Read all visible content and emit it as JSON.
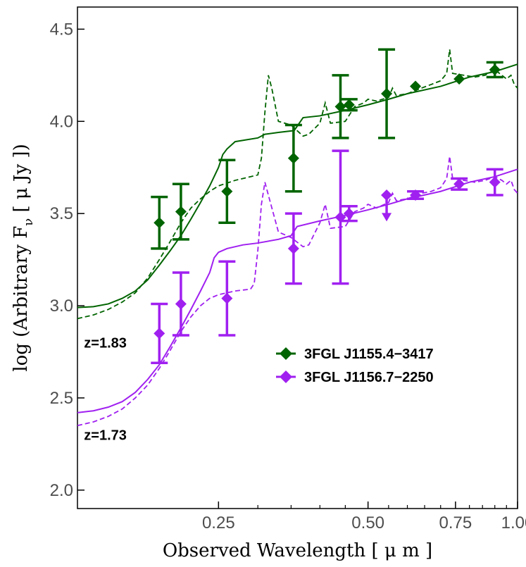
{
  "chart_data": {
    "type": "scatter",
    "xscale": "log",
    "xlim": [
      0.13,
      1.0
    ],
    "ylim": [
      1.9,
      4.62
    ],
    "xlabel": "Observed Wavelength [ μ m ]",
    "ylabel_main": "log (Arbitrary F",
    "ylabel_sub": "ν",
    "ylabel_tail": " [ μ Jy ])",
    "x_ticks": [
      {
        "value": 0.25,
        "label": "0.25"
      },
      {
        "value": 0.5,
        "label": "0.50"
      },
      {
        "value": 0.75,
        "label": "0.75"
      },
      {
        "value": 1.0,
        "label": "1.00"
      }
    ],
    "x_minor_ticks": [
      0.3,
      0.35,
      0.4,
      0.45,
      0.55,
      0.6,
      0.65,
      0.7,
      0.8,
      0.85,
      0.9,
      0.95
    ],
    "y_ticks": [
      {
        "value": 2.0,
        "label": "2.0"
      },
      {
        "value": 2.5,
        "label": "2.5"
      },
      {
        "value": 3.0,
        "label": "3.0"
      },
      {
        "value": 3.5,
        "label": "3.5"
      },
      {
        "value": 4.0,
        "label": "4.0"
      },
      {
        "value": 4.5,
        "label": "4.5"
      }
    ],
    "annotations": [
      {
        "text": "z=1.83",
        "x": 0.134,
        "y": 2.8
      },
      {
        "text": "z=1.73",
        "x": 0.134,
        "y": 2.3
      }
    ],
    "series": [
      {
        "name": "3FGL J1155.4−3417",
        "color": "#006400",
        "points": [
          {
            "x": 0.19,
            "y": 3.45,
            "err": 0.14
          },
          {
            "x": 0.21,
            "y": 3.51,
            "err": 0.15
          },
          {
            "x": 0.26,
            "y": 3.62,
            "err": 0.17
          },
          {
            "x": 0.354,
            "y": 3.8,
            "err": 0.18
          },
          {
            "x": 0.44,
            "y": 4.08,
            "err": 0.17
          },
          {
            "x": 0.458,
            "y": 4.09,
            "err": 0.03
          },
          {
            "x": 0.545,
            "y": 4.15,
            "err": 0.24
          },
          {
            "x": 0.623,
            "y": 4.19,
            "err": 0.01
          },
          {
            "x": 0.763,
            "y": 4.23,
            "err": 0.01
          },
          {
            "x": 0.9,
            "y": 4.28,
            "err": 0.04
          }
        ],
        "model_solid": [
          [
            0.13,
            2.99
          ],
          [
            0.14,
            2.995
          ],
          [
            0.15,
            3.01
          ],
          [
            0.16,
            3.04
          ],
          [
            0.17,
            3.08
          ],
          [
            0.18,
            3.14
          ],
          [
            0.19,
            3.22
          ],
          [
            0.2,
            3.3
          ],
          [
            0.21,
            3.38
          ],
          [
            0.22,
            3.47
          ],
          [
            0.23,
            3.56
          ],
          [
            0.24,
            3.65
          ],
          [
            0.25,
            3.75
          ],
          [
            0.255,
            3.82
          ],
          [
            0.26,
            3.85
          ],
          [
            0.27,
            3.89
          ],
          [
            0.3,
            3.91
          ],
          [
            0.31,
            3.93
          ],
          [
            0.33,
            3.94
          ],
          [
            0.355,
            3.95
          ],
          [
            0.37,
            4.02
          ],
          [
            0.4,
            4.03
          ],
          [
            0.45,
            4.06
          ],
          [
            0.5,
            4.09
          ],
          [
            0.55,
            4.12
          ],
          [
            0.6,
            4.15
          ],
          [
            0.7,
            4.19
          ],
          [
            0.8,
            4.24
          ],
          [
            0.9,
            4.27
          ],
          [
            1.0,
            4.31
          ]
        ],
        "model_dashed": [
          [
            0.13,
            2.93
          ],
          [
            0.14,
            2.95
          ],
          [
            0.15,
            2.98
          ],
          [
            0.16,
            3.02
          ],
          [
            0.17,
            3.07
          ],
          [
            0.18,
            3.15
          ],
          [
            0.19,
            3.25
          ],
          [
            0.2,
            3.35
          ],
          [
            0.21,
            3.45
          ],
          [
            0.22,
            3.53
          ],
          [
            0.23,
            3.58
          ],
          [
            0.24,
            3.62
          ],
          [
            0.25,
            3.65
          ],
          [
            0.27,
            3.68
          ],
          [
            0.29,
            3.7
          ],
          [
            0.3,
            3.71
          ],
          [
            0.305,
            3.8
          ],
          [
            0.31,
            4.05
          ],
          [
            0.315,
            4.25
          ],
          [
            0.32,
            4.18
          ],
          [
            0.33,
            4.0
          ],
          [
            0.35,
            3.98
          ],
          [
            0.37,
            3.92
          ],
          [
            0.38,
            3.93
          ],
          [
            0.4,
            3.99
          ],
          [
            0.41,
            4.1
          ],
          [
            0.42,
            3.99
          ],
          [
            0.45,
            4.0
          ],
          [
            0.47,
            4.08
          ],
          [
            0.49,
            4.1
          ],
          [
            0.5,
            4.12
          ],
          [
            0.52,
            4.11
          ],
          [
            0.55,
            4.13
          ],
          [
            0.56,
            4.18
          ],
          [
            0.57,
            4.14
          ],
          [
            0.6,
            4.15
          ],
          [
            0.64,
            4.18
          ],
          [
            0.67,
            4.2
          ],
          [
            0.7,
            4.22
          ],
          [
            0.72,
            4.26
          ],
          [
            0.73,
            4.39
          ],
          [
            0.74,
            4.26
          ],
          [
            0.78,
            4.25
          ],
          [
            0.82,
            4.24
          ],
          [
            0.86,
            4.25
          ],
          [
            0.9,
            4.28
          ],
          [
            0.93,
            4.25
          ],
          [
            0.95,
            4.23
          ],
          [
            0.97,
            4.25
          ],
          [
            0.985,
            4.2
          ],
          [
            1.0,
            4.18
          ]
        ]
      },
      {
        "name": "3FGL J1156.7−2250",
        "color": "#a020f0",
        "points": [
          {
            "x": 0.19,
            "y": 2.85,
            "err": 0.16
          },
          {
            "x": 0.21,
            "y": 3.01,
            "err": 0.17
          },
          {
            "x": 0.26,
            "y": 3.04,
            "err": 0.2
          },
          {
            "x": 0.354,
            "y": 3.31,
            "err": 0.19
          },
          {
            "x": 0.44,
            "y": 3.48,
            "err": 0.36
          },
          {
            "x": 0.458,
            "y": 3.5,
            "err": 0.04
          },
          {
            "x": 0.545,
            "y": 3.6,
            "upper_limit": true
          },
          {
            "x": 0.623,
            "y": 3.6,
            "err": 0.02
          },
          {
            "x": 0.763,
            "y": 3.66,
            "err": 0.03
          },
          {
            "x": 0.9,
            "y": 3.67,
            "err": 0.07
          }
        ],
        "model_solid": [
          [
            0.13,
            2.42
          ],
          [
            0.14,
            2.43
          ],
          [
            0.15,
            2.45
          ],
          [
            0.16,
            2.48
          ],
          [
            0.17,
            2.53
          ],
          [
            0.18,
            2.6
          ],
          [
            0.19,
            2.68
          ],
          [
            0.2,
            2.78
          ],
          [
            0.21,
            2.88
          ],
          [
            0.22,
            2.98
          ],
          [
            0.23,
            3.08
          ],
          [
            0.24,
            3.18
          ],
          [
            0.245,
            3.26
          ],
          [
            0.25,
            3.29
          ],
          [
            0.26,
            3.31
          ],
          [
            0.28,
            3.33
          ],
          [
            0.3,
            3.34
          ],
          [
            0.33,
            3.36
          ],
          [
            0.35,
            3.38
          ],
          [
            0.36,
            3.43
          ],
          [
            0.4,
            3.46
          ],
          [
            0.45,
            3.49
          ],
          [
            0.5,
            3.52
          ],
          [
            0.55,
            3.55
          ],
          [
            0.6,
            3.58
          ],
          [
            0.7,
            3.62
          ],
          [
            0.8,
            3.67
          ],
          [
            0.9,
            3.7
          ],
          [
            1.0,
            3.74
          ]
        ],
        "model_dashed": [
          [
            0.13,
            2.35
          ],
          [
            0.14,
            2.37
          ],
          [
            0.15,
            2.4
          ],
          [
            0.16,
            2.44
          ],
          [
            0.17,
            2.5
          ],
          [
            0.18,
            2.57
          ],
          [
            0.19,
            2.66
          ],
          [
            0.2,
            2.76
          ],
          [
            0.21,
            2.86
          ],
          [
            0.22,
            2.94
          ],
          [
            0.23,
            3.0
          ],
          [
            0.24,
            3.04
          ],
          [
            0.25,
            3.06
          ],
          [
            0.27,
            3.08
          ],
          [
            0.29,
            3.09
          ],
          [
            0.295,
            3.12
          ],
          [
            0.3,
            3.3
          ],
          [
            0.305,
            3.55
          ],
          [
            0.31,
            3.67
          ],
          [
            0.315,
            3.6
          ],
          [
            0.33,
            3.4
          ],
          [
            0.35,
            3.37
          ],
          [
            0.37,
            3.32
          ],
          [
            0.38,
            3.33
          ],
          [
            0.4,
            3.45
          ],
          [
            0.41,
            3.55
          ],
          [
            0.42,
            3.42
          ],
          [
            0.45,
            3.43
          ],
          [
            0.47,
            3.51
          ],
          [
            0.49,
            3.53
          ],
          [
            0.5,
            3.55
          ],
          [
            0.52,
            3.53
          ],
          [
            0.55,
            3.56
          ],
          [
            0.56,
            3.61
          ],
          [
            0.57,
            3.57
          ],
          [
            0.6,
            3.58
          ],
          [
            0.64,
            3.61
          ],
          [
            0.67,
            3.62
          ],
          [
            0.7,
            3.64
          ],
          [
            0.72,
            3.69
          ],
          [
            0.73,
            3.81
          ],
          [
            0.74,
            3.69
          ],
          [
            0.78,
            3.68
          ],
          [
            0.82,
            3.67
          ],
          [
            0.86,
            3.68
          ],
          [
            0.9,
            3.7
          ],
          [
            0.93,
            3.68
          ],
          [
            0.95,
            3.66
          ],
          [
            0.97,
            3.68
          ],
          [
            0.985,
            3.63
          ],
          [
            1.0,
            3.61
          ]
        ]
      }
    ]
  }
}
